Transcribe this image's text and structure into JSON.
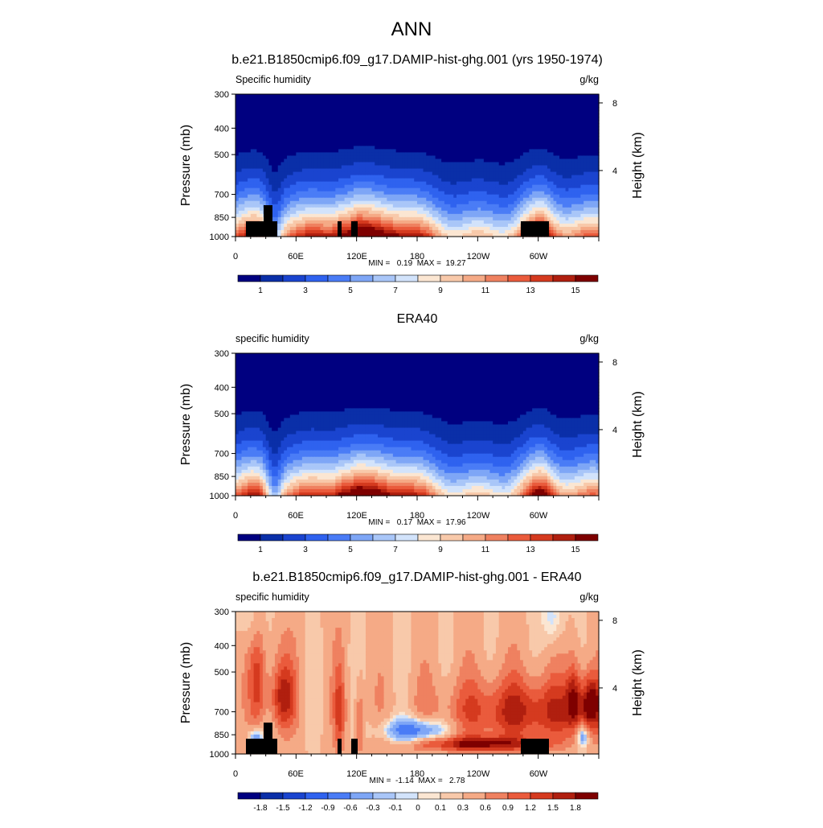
{
  "page": {
    "title": "ANN"
  },
  "colors": {
    "full_palette": [
      "#000080",
      "#0a2fa8",
      "#1a44cf",
      "#2f62ef",
      "#4a7cf6",
      "#7ea6f6",
      "#a9c6f8",
      "#d2e3fb",
      "#fbe6d2",
      "#f8c9aa",
      "#f5aa86",
      "#ef8160",
      "#ea5b3c",
      "#d53a1f",
      "#b01f0f",
      "#7e0000"
    ],
    "diff_palette": [
      "#000080",
      "#0a2fa8",
      "#1a44cf",
      "#2f62ef",
      "#4a7cf6",
      "#7ea6f6",
      "#a9c6f8",
      "#d2e3fb",
      "#fbe6d2",
      "#f8c9aa",
      "#f5aa86",
      "#ef8160",
      "#ea5b3c",
      "#d53a1f",
      "#b01f0f",
      "#7e0000"
    ],
    "terrain": "#000000"
  },
  "chart_data": [
    {
      "type": "heatmap",
      "kind": "full",
      "title": "b.e21.B1850cmip6.f09_g17.DAMIP-hist-ghg.001 (yrs 1950-1974)",
      "left_label": "Specific humidity",
      "units": "g/kg",
      "ylabel": "Pressure (mb)",
      "y2label": "Height (km)",
      "yticks": [
        "300",
        "400",
        "500",
        "700",
        "850",
        "1000"
      ],
      "y2ticks": [
        "8",
        "4"
      ],
      "xticks": [
        "0",
        "60E",
        "120E",
        "180",
        "120W",
        "60W"
      ],
      "stats": "MIN =   0.19  MAX =  19.27",
      "colorbar_labels": [
        "1",
        "3",
        "5",
        "7",
        "9",
        "11",
        "13",
        "15"
      ],
      "terrain": true
    },
    {
      "type": "heatmap",
      "kind": "full",
      "title": "ERA40",
      "left_label": "specific humidity",
      "units": "g/kg",
      "ylabel": "Pressure (mb)",
      "y2label": "Height (km)",
      "yticks": [
        "300",
        "400",
        "500",
        "700",
        "850",
        "1000"
      ],
      "y2ticks": [
        "8",
        "4"
      ],
      "xticks": [
        "0",
        "60E",
        "120E",
        "180",
        "120W",
        "60W"
      ],
      "stats": "MIN =   0.17  MAX =  17.96",
      "colorbar_labels": [
        "1",
        "3",
        "5",
        "7",
        "9",
        "11",
        "13",
        "15"
      ],
      "terrain": false
    },
    {
      "type": "heatmap",
      "kind": "diff",
      "title": "b.e21.B1850cmip6.f09_g17.DAMIP-hist-ghg.001 - ERA40",
      "left_label": "specific humidity",
      "units": "g/kg",
      "ylabel": "Pressure (mb)",
      "y2label": "Height (km)",
      "yticks": [
        "300",
        "400",
        "500",
        "700",
        "850",
        "1000"
      ],
      "y2ticks": [
        "8",
        "4"
      ],
      "xticks": [
        "0",
        "60E",
        "120E",
        "180",
        "120W",
        "60W"
      ],
      "stats": "MIN =  -1.14  MAX =   2.78",
      "colorbar_labels": [
        "-1.8",
        "-1.5",
        "-1.2",
        "-0.9",
        "-0.6",
        "-0.3",
        "-0.1",
        "0",
        "0.1",
        "0.3",
        "0.6",
        "0.9",
        "1.2",
        "1.5",
        "1.8"
      ],
      "terrain": true
    }
  ]
}
